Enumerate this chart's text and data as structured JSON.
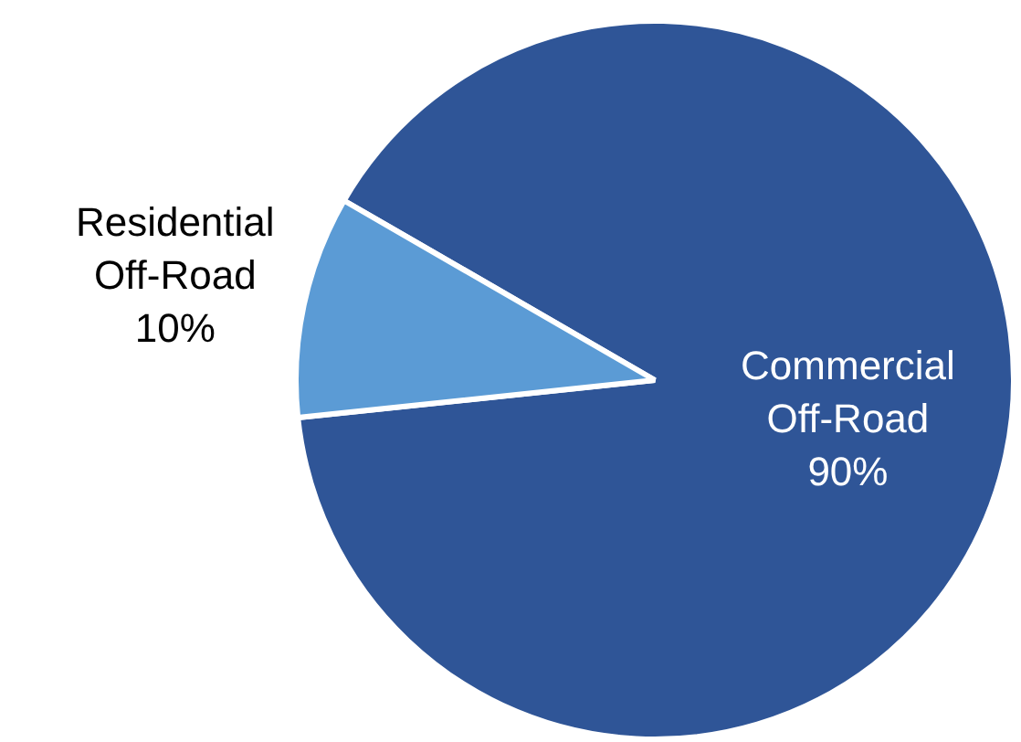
{
  "chart_data": {
    "type": "pie",
    "categories": [
      "Commercial Off-Road",
      "Residential Off-Road"
    ],
    "values": [
      90,
      10
    ],
    "value_labels": [
      "90%",
      "10%"
    ],
    "colors": [
      "#2f5597",
      "#5b9bd5"
    ],
    "legend": false
  }
}
